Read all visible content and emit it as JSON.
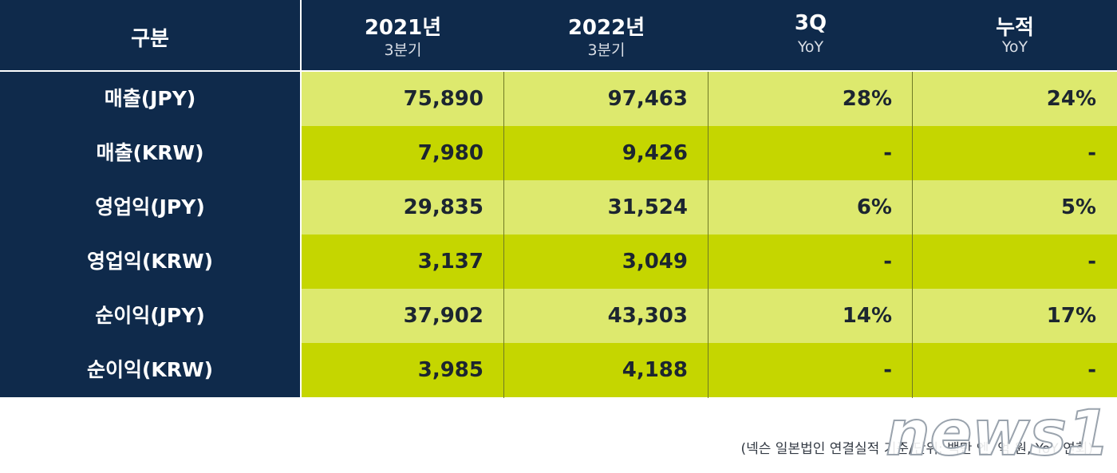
{
  "header": {
    "category": "구분",
    "col1_main": "2021년",
    "col1_sub": "3분기",
    "col2_main": "2022년",
    "col2_sub": "3분기",
    "col3_main": "3Q",
    "col3_sub": "YoY",
    "col4_main": "누적",
    "col4_sub": "YoY"
  },
  "rows": [
    {
      "label": "매출(JPY)",
      "v2021": "75,890",
      "v2022": "97,463",
      "q3_yoy": "28%",
      "cum_yoy": "24%"
    },
    {
      "label": "매출(KRW)",
      "v2021": "7,980",
      "v2022": "9,426",
      "q3_yoy": "-",
      "cum_yoy": "-"
    },
    {
      "label": "영업익(JPY)",
      "v2021": "29,835",
      "v2022": "31,524",
      "q3_yoy": "6%",
      "cum_yoy": "5%"
    },
    {
      "label": "영업익(KRW)",
      "v2021": "3,137",
      "v2022": "3,049",
      "q3_yoy": "-",
      "cum_yoy": "-"
    },
    {
      "label": "순이익(JPY)",
      "v2021": "37,902",
      "v2022": "43,303",
      "q3_yoy": "14%",
      "cum_yoy": "17%"
    },
    {
      "label": "순이익(KRW)",
      "v2021": "3,985",
      "v2022": "4,188",
      "q3_yoy": "-",
      "cum_yoy": "-"
    }
  ],
  "footnote": "(넥슨 일본법인 연결실적 기준/단위: 백만 엔, 억 원, YoY 연회)",
  "watermark": "news1",
  "colors": {
    "navy": "#0f2a4b",
    "lime_light": "#dde96e",
    "lime_dark": "#c5d600"
  }
}
